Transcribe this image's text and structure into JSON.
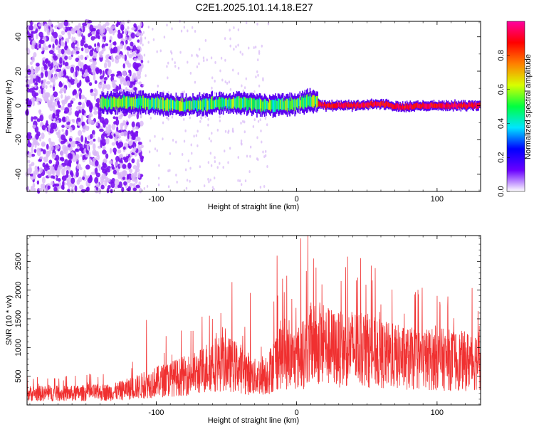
{
  "title": "C2E1.2025.101.14.18.E27",
  "chart_data": [
    {
      "type": "heatmap",
      "xlabel": "Height of straight line (km)",
      "ylabel": "Frequency (Hz)",
      "xlim": [
        -192,
        131
      ],
      "ylim": [
        -50,
        49
      ],
      "xticks": [
        -100,
        0,
        100
      ],
      "xtick_labels": [
        "-100",
        "0",
        "100"
      ],
      "yticks": [
        -40,
        -20,
        0,
        20,
        40
      ],
      "ytick_labels": [
        "-40",
        "-20",
        "0",
        "20",
        "40"
      ],
      "colorbar": {
        "label": "Normalized spectral amplitude",
        "range": [
          0,
          1
        ],
        "ticks": [
          0.0,
          0.2,
          0.4,
          0.6,
          0.8
        ],
        "tick_labels": [
          "0.0",
          "0.2",
          "0.4",
          "0.6",
          "0.8"
        ],
        "colormap": [
          "#ffffff",
          "#6a00ff",
          "#0000ff",
          "#00e5ff",
          "#00ff40",
          "#d8ff00",
          "#ff8000",
          "#ff0000",
          "#ff00a0"
        ]
      },
      "ridge": {
        "description_points_x": [
          -140,
          -120,
          -100,
          -80,
          -60,
          -40,
          -20,
          0,
          12,
          20,
          40,
          60,
          75,
          90,
          110,
          131
        ],
        "description_points_y": [
          1.5,
          2,
          1,
          0,
          1,
          1.5,
          0,
          1,
          3,
          0,
          0,
          1,
          -1,
          0,
          0,
          0
        ]
      },
      "noise_region_x": [
        -192,
        -110
      ]
    },
    {
      "type": "line",
      "xlabel": "Height of straight line (km)",
      "ylabel": "SNR (10 * v/v)",
      "xlim": [
        -192,
        131
      ],
      "ylim": [
        0,
        2950
      ],
      "xticks": [
        -100,
        0,
        100
      ],
      "xtick_labels": [
        "-100",
        "0",
        "100"
      ],
      "yticks": [
        500,
        1000,
        1500,
        2000,
        2500
      ],
      "ytick_labels": [
        "500",
        "1000",
        "1500",
        "2000",
        "2500"
      ],
      "series": [
        {
          "color": "#f03030",
          "envelope_x": [
            -192,
            -160,
            -130,
            -115,
            -100,
            -85,
            -70,
            -60,
            -50,
            -40,
            -30,
            -20,
            -12,
            -5,
            0,
            5,
            10,
            20,
            30,
            40,
            50,
            60,
            70,
            80,
            100,
            120,
            131
          ],
          "envelope_y": [
            250,
            250,
            280,
            380,
            500,
            600,
            700,
            900,
            900,
            800,
            600,
            700,
            1100,
            1000,
            1000,
            1100,
            1300,
            1300,
            1200,
            1250,
            1200,
            1100,
            1050,
            1000,
            1000,
            950,
            1000
          ],
          "peaks_x": [
            -107,
            -93,
            -60,
            -46,
            -33,
            -14,
            -7,
            3,
            8,
            12,
            18,
            35,
            60,
            100
          ],
          "peaks_y": [
            1480,
            1200,
            1500,
            2140,
            1950,
            2600,
            2250,
            2900,
            2950,
            2550,
            2100,
            2400,
            1750,
            1900
          ]
        }
      ]
    }
  ]
}
